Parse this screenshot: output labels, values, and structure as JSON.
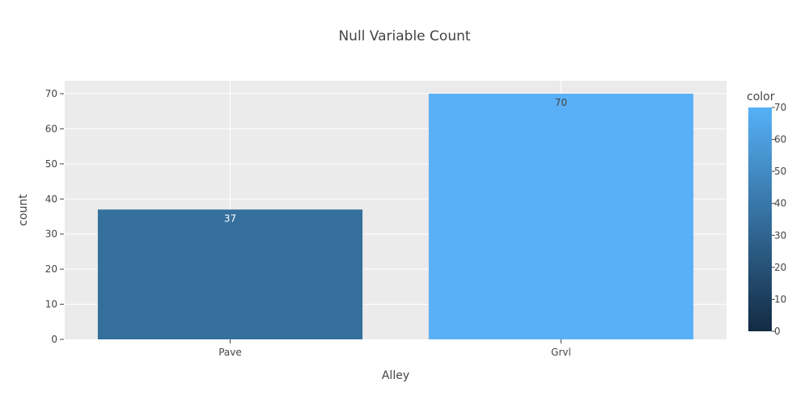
{
  "chart_data": {
    "type": "bar",
    "title": "Null Variable Count",
    "xlabel": "Alley",
    "ylabel": "count",
    "categories": [
      "Pave",
      "Grvl"
    ],
    "values": [
      37,
      70
    ],
    "data_labels": [
      "37",
      "70"
    ],
    "ylim": [
      0,
      70
    ],
    "yticks": [
      0,
      10,
      20,
      30,
      40,
      50,
      60,
      70
    ],
    "grid": true,
    "background": "#ebebeb",
    "bar_colors": [
      "#35709c",
      "#5ab0f6"
    ],
    "colorbar": {
      "title": "color",
      "range": [
        0,
        70
      ],
      "ticks": [
        0,
        10,
        20,
        30,
        40,
        50,
        60,
        70
      ],
      "colors": [
        "#132b43",
        "#56b1f7"
      ],
      "placement": "right"
    }
  }
}
